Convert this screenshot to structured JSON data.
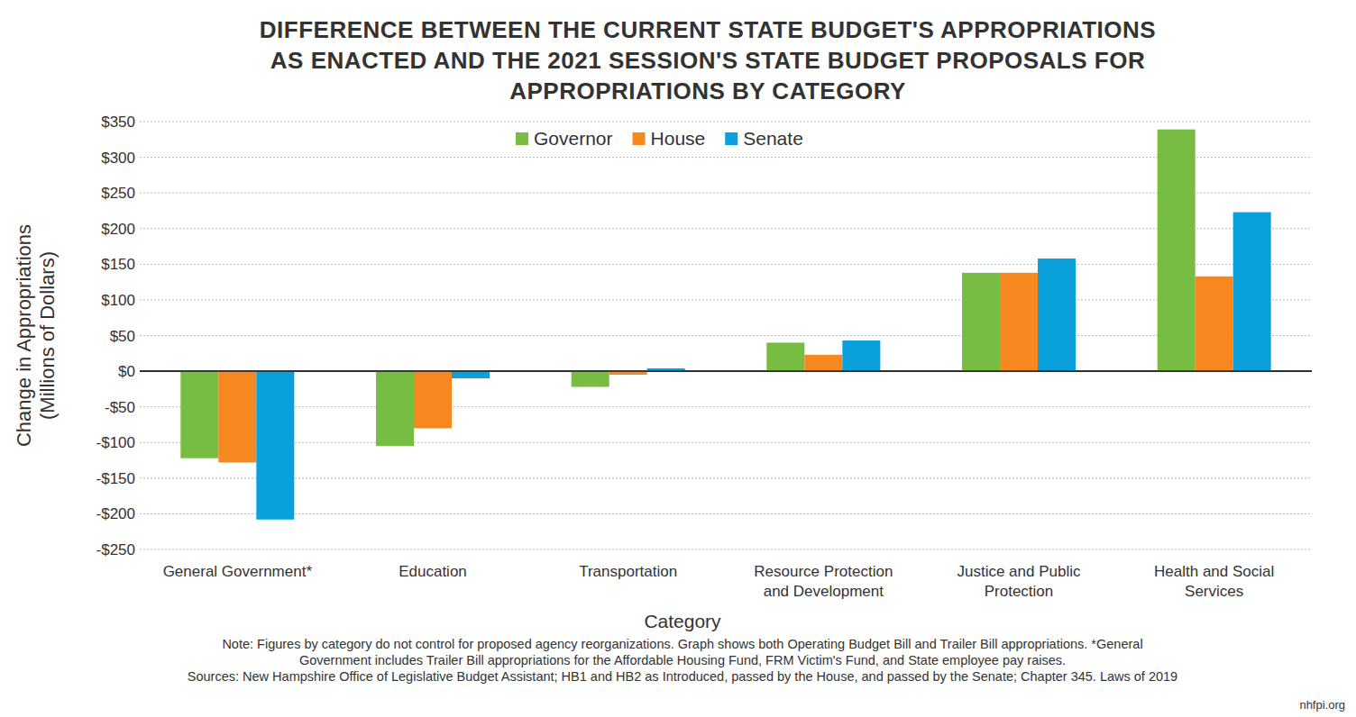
{
  "chart_data": {
    "type": "bar",
    "title": "DIFFERENCE BETWEEN THE CURRENT STATE BUDGET'S APPROPRIATIONS\nAS ENACTED AND THE 2021 SESSION'S STATE BUDGET PROPOSALS FOR\nAPPROPRIATIONS BY CATEGORY",
    "x_label": "Category",
    "y_label": "Change in Appropriations\n(Millions of Dollars)",
    "categories": [
      "General Government*",
      "Education",
      "Transportation",
      "Resource Protection\nand Development",
      "Justice and Public\nProtection",
      "Health and Social\nServices"
    ],
    "series": [
      {
        "name": "Governor",
        "color": "#77bc43",
        "values": [
          -122,
          -105,
          -22,
          40,
          138,
          339
        ]
      },
      {
        "name": "House",
        "color": "#f7881f",
        "values": [
          -128,
          -80,
          -5,
          23,
          138,
          133
        ]
      },
      {
        "name": "Senate",
        "color": "#0aa0dc",
        "values": [
          -208,
          -10,
          4,
          43,
          158,
          223
        ]
      }
    ],
    "ylim": [
      -250,
      350
    ],
    "yticks": [
      {
        "value": -250,
        "label": "-$250"
      },
      {
        "value": -200,
        "label": "-$200"
      },
      {
        "value": -150,
        "label": "-$150"
      },
      {
        "value": -100,
        "label": "-$100"
      },
      {
        "value": -50,
        "label": "-$50"
      },
      {
        "value": 0,
        "label": "$0"
      },
      {
        "value": 50,
        "label": "$50"
      },
      {
        "value": 100,
        "label": "$100"
      },
      {
        "value": 150,
        "label": "$150"
      },
      {
        "value": 200,
        "label": "$200"
      },
      {
        "value": 250,
        "label": "$250"
      },
      {
        "value": 300,
        "label": "$300"
      },
      {
        "value": 350,
        "label": "$350"
      }
    ],
    "grid": true,
    "legend": "top",
    "note": "Note: Figures by category do not control for proposed agency reorganizations. Graph shows both Operating Budget Bill and Trailer Bill appropriations. *General\nGovernment includes Trailer Bill appropriations for the Affordable Housing Fund, FRM Victim's Fund, and State employee pay raises.",
    "source": "Sources: New Hampshire Office of Legislative Budget Assistant; HB1 and HB2 as Introduced, passed by the House, and passed by the Senate; Chapter 345. Laws of 2019",
    "credit": "nhfpi.org"
  }
}
